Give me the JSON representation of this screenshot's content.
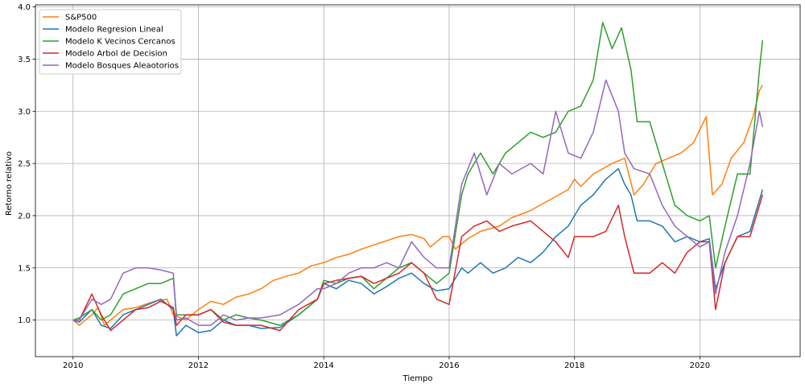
{
  "chart_data": {
    "type": "line",
    "xlabel": "Tiempo",
    "ylabel": "Retorno relativo",
    "xlim": [
      2009.4,
      2021.6
    ],
    "ylim": [
      0.65,
      4.02
    ],
    "x_ticks": [
      2010,
      2012,
      2014,
      2016,
      2018,
      2020
    ],
    "x_tick_labels": [
      "2010",
      "2012",
      "2014",
      "2016",
      "2018",
      "2020"
    ],
    "y_ticks": [
      1.0,
      1.5,
      2.0,
      2.5,
      3.0,
      3.5,
      4.0
    ],
    "y_tick_labels": [
      "1.0",
      "1.5",
      "2.0",
      "2.5",
      "3.0",
      "3.5",
      "4.0"
    ],
    "grid": true,
    "legend_position": "upper-left",
    "series": [
      {
        "name": "S&P500",
        "color": "#ff7f0e",
        "points": [
          [
            2010.0,
            1.0
          ],
          [
            2010.1,
            0.95
          ],
          [
            2010.3,
            1.05
          ],
          [
            2010.4,
            1.12
          ],
          [
            2010.5,
            0.95
          ],
          [
            2010.6,
            1.0
          ],
          [
            2010.8,
            1.1
          ],
          [
            2011.0,
            1.12
          ],
          [
            2011.3,
            1.18
          ],
          [
            2011.5,
            1.2
          ],
          [
            2011.6,
            1.05
          ],
          [
            2011.8,
            1.0
          ],
          [
            2012.0,
            1.1
          ],
          [
            2012.2,
            1.18
          ],
          [
            2012.4,
            1.15
          ],
          [
            2012.6,
            1.22
          ],
          [
            2012.8,
            1.25
          ],
          [
            2013.0,
            1.3
          ],
          [
            2013.2,
            1.38
          ],
          [
            2013.4,
            1.42
          ],
          [
            2013.6,
            1.45
          ],
          [
            2013.8,
            1.52
          ],
          [
            2014.0,
            1.55
          ],
          [
            2014.2,
            1.6
          ],
          [
            2014.4,
            1.63
          ],
          [
            2014.6,
            1.68
          ],
          [
            2014.8,
            1.72
          ],
          [
            2015.0,
            1.76
          ],
          [
            2015.2,
            1.8
          ],
          [
            2015.4,
            1.82
          ],
          [
            2015.6,
            1.78
          ],
          [
            2015.7,
            1.7
          ],
          [
            2015.9,
            1.8
          ],
          [
            2016.0,
            1.8
          ],
          [
            2016.1,
            1.68
          ],
          [
            2016.3,
            1.78
          ],
          [
            2016.5,
            1.85
          ],
          [
            2016.8,
            1.9
          ],
          [
            2017.0,
            1.98
          ],
          [
            2017.3,
            2.05
          ],
          [
            2017.6,
            2.15
          ],
          [
            2017.9,
            2.25
          ],
          [
            2018.0,
            2.35
          ],
          [
            2018.1,
            2.28
          ],
          [
            2018.3,
            2.4
          ],
          [
            2018.6,
            2.5
          ],
          [
            2018.8,
            2.55
          ],
          [
            2018.95,
            2.2
          ],
          [
            2019.1,
            2.3
          ],
          [
            2019.3,
            2.5
          ],
          [
            2019.5,
            2.55
          ],
          [
            2019.7,
            2.6
          ],
          [
            2019.9,
            2.7
          ],
          [
            2020.1,
            2.95
          ],
          [
            2020.2,
            2.2
          ],
          [
            2020.35,
            2.3
          ],
          [
            2020.5,
            2.55
          ],
          [
            2020.7,
            2.7
          ],
          [
            2020.85,
            2.95
          ],
          [
            2020.95,
            3.2
          ],
          [
            2021.0,
            3.25
          ]
        ]
      },
      {
        "name": "Modelo Regresion Lineal",
        "color": "#1f77b4",
        "points": [
          [
            2010.0,
            1.0
          ],
          [
            2010.1,
            0.98
          ],
          [
            2010.3,
            1.1
          ],
          [
            2010.45,
            0.95
          ],
          [
            2010.6,
            0.92
          ],
          [
            2010.8,
            1.05
          ],
          [
            2011.0,
            1.1
          ],
          [
            2011.2,
            1.15
          ],
          [
            2011.4,
            1.2
          ],
          [
            2011.6,
            1.1
          ],
          [
            2011.65,
            0.85
          ],
          [
            2011.8,
            0.95
          ],
          [
            2012.0,
            0.88
          ],
          [
            2012.2,
            0.9
          ],
          [
            2012.4,
            1.0
          ],
          [
            2012.6,
            0.95
          ],
          [
            2012.8,
            0.95
          ],
          [
            2013.0,
            0.92
          ],
          [
            2013.3,
            0.93
          ],
          [
            2013.6,
            1.05
          ],
          [
            2013.9,
            1.2
          ],
          [
            2014.0,
            1.35
          ],
          [
            2014.2,
            1.3
          ],
          [
            2014.4,
            1.38
          ],
          [
            2014.6,
            1.35
          ],
          [
            2014.8,
            1.25
          ],
          [
            2015.0,
            1.32
          ],
          [
            2015.2,
            1.4
          ],
          [
            2015.4,
            1.45
          ],
          [
            2015.6,
            1.35
          ],
          [
            2015.8,
            1.28
          ],
          [
            2016.0,
            1.3
          ],
          [
            2016.2,
            1.5
          ],
          [
            2016.3,
            1.45
          ],
          [
            2016.5,
            1.55
          ],
          [
            2016.7,
            1.45
          ],
          [
            2016.9,
            1.5
          ],
          [
            2017.1,
            1.6
          ],
          [
            2017.3,
            1.55
          ],
          [
            2017.5,
            1.65
          ],
          [
            2017.7,
            1.8
          ],
          [
            2017.9,
            1.9
          ],
          [
            2018.1,
            2.1
          ],
          [
            2018.3,
            2.2
          ],
          [
            2018.5,
            2.35
          ],
          [
            2018.7,
            2.45
          ],
          [
            2018.8,
            2.3
          ],
          [
            2018.9,
            2.2
          ],
          [
            2019.0,
            1.95
          ],
          [
            2019.2,
            1.95
          ],
          [
            2019.4,
            1.9
          ],
          [
            2019.6,
            1.75
          ],
          [
            2019.8,
            1.8
          ],
          [
            2020.0,
            1.75
          ],
          [
            2020.15,
            1.78
          ],
          [
            2020.25,
            1.3
          ],
          [
            2020.4,
            1.55
          ],
          [
            2020.6,
            1.8
          ],
          [
            2020.8,
            1.85
          ],
          [
            2021.0,
            2.25
          ]
        ]
      },
      {
        "name": "Modelo K Vecinos Cercanos",
        "color": "#2ca02c",
        "points": [
          [
            2010.0,
            1.0
          ],
          [
            2010.1,
            1.02
          ],
          [
            2010.3,
            1.1
          ],
          [
            2010.45,
            1.0
          ],
          [
            2010.6,
            1.05
          ],
          [
            2010.8,
            1.25
          ],
          [
            2011.0,
            1.3
          ],
          [
            2011.2,
            1.35
          ],
          [
            2011.4,
            1.35
          ],
          [
            2011.6,
            1.4
          ],
          [
            2011.65,
            1.05
          ],
          [
            2011.8,
            1.05
          ],
          [
            2012.0,
            1.05
          ],
          [
            2012.2,
            1.1
          ],
          [
            2012.4,
            1.0
          ],
          [
            2012.6,
            1.05
          ],
          [
            2012.8,
            1.02
          ],
          [
            2013.0,
            1.0
          ],
          [
            2013.3,
            0.95
          ],
          [
            2013.6,
            1.05
          ],
          [
            2013.9,
            1.2
          ],
          [
            2014.0,
            1.38
          ],
          [
            2014.2,
            1.35
          ],
          [
            2014.4,
            1.4
          ],
          [
            2014.6,
            1.42
          ],
          [
            2014.8,
            1.3
          ],
          [
            2015.0,
            1.4
          ],
          [
            2015.2,
            1.5
          ],
          [
            2015.4,
            1.55
          ],
          [
            2015.6,
            1.45
          ],
          [
            2015.8,
            1.35
          ],
          [
            2016.0,
            1.45
          ],
          [
            2016.2,
            2.2
          ],
          [
            2016.3,
            2.4
          ],
          [
            2016.5,
            2.6
          ],
          [
            2016.7,
            2.4
          ],
          [
            2016.9,
            2.6
          ],
          [
            2017.1,
            2.7
          ],
          [
            2017.3,
            2.8
          ],
          [
            2017.5,
            2.75
          ],
          [
            2017.7,
            2.8
          ],
          [
            2017.9,
            3.0
          ],
          [
            2018.1,
            3.05
          ],
          [
            2018.3,
            3.3
          ],
          [
            2018.45,
            3.85
          ],
          [
            2018.6,
            3.6
          ],
          [
            2018.75,
            3.8
          ],
          [
            2018.9,
            3.4
          ],
          [
            2019.0,
            2.9
          ],
          [
            2019.2,
            2.9
          ],
          [
            2019.4,
            2.5
          ],
          [
            2019.6,
            2.1
          ],
          [
            2019.8,
            2.0
          ],
          [
            2020.0,
            1.95
          ],
          [
            2020.15,
            2.0
          ],
          [
            2020.25,
            1.5
          ],
          [
            2020.4,
            1.9
          ],
          [
            2020.6,
            2.4
          ],
          [
            2020.8,
            2.4
          ],
          [
            2020.95,
            3.4
          ],
          [
            2021.0,
            3.68
          ]
        ]
      },
      {
        "name": "Modelo Arbol de Decision",
        "color": "#d62728",
        "points": [
          [
            2010.0,
            1.0
          ],
          [
            2010.1,
            1.0
          ],
          [
            2010.3,
            1.25
          ],
          [
            2010.45,
            1.05
          ],
          [
            2010.6,
            0.9
          ],
          [
            2010.8,
            1.0
          ],
          [
            2011.0,
            1.1
          ],
          [
            2011.2,
            1.12
          ],
          [
            2011.4,
            1.18
          ],
          [
            2011.6,
            1.12
          ],
          [
            2011.65,
            0.95
          ],
          [
            2011.8,
            1.05
          ],
          [
            2012.0,
            1.05
          ],
          [
            2012.2,
            1.1
          ],
          [
            2012.4,
            0.98
          ],
          [
            2012.6,
            0.95
          ],
          [
            2012.8,
            0.95
          ],
          [
            2013.0,
            0.95
          ],
          [
            2013.3,
            0.9
          ],
          [
            2013.6,
            1.1
          ],
          [
            2013.9,
            1.2
          ],
          [
            2014.0,
            1.35
          ],
          [
            2014.2,
            1.38
          ],
          [
            2014.4,
            1.4
          ],
          [
            2014.6,
            1.42
          ],
          [
            2014.8,
            1.35
          ],
          [
            2015.0,
            1.4
          ],
          [
            2015.2,
            1.45
          ],
          [
            2015.4,
            1.55
          ],
          [
            2015.6,
            1.45
          ],
          [
            2015.8,
            1.2
          ],
          [
            2016.0,
            1.15
          ],
          [
            2016.2,
            1.8
          ],
          [
            2016.4,
            1.9
          ],
          [
            2016.6,
            1.95
          ],
          [
            2016.8,
            1.85
          ],
          [
            2017.0,
            1.9
          ],
          [
            2017.3,
            1.95
          ],
          [
            2017.5,
            1.85
          ],
          [
            2017.7,
            1.75
          ],
          [
            2017.9,
            1.6
          ],
          [
            2018.0,
            1.8
          ],
          [
            2018.3,
            1.8
          ],
          [
            2018.5,
            1.85
          ],
          [
            2018.7,
            2.1
          ],
          [
            2018.8,
            1.8
          ],
          [
            2018.95,
            1.45
          ],
          [
            2019.2,
            1.45
          ],
          [
            2019.4,
            1.55
          ],
          [
            2019.6,
            1.45
          ],
          [
            2019.8,
            1.65
          ],
          [
            2020.0,
            1.75
          ],
          [
            2020.15,
            1.75
          ],
          [
            2020.25,
            1.1
          ],
          [
            2020.4,
            1.55
          ],
          [
            2020.6,
            1.8
          ],
          [
            2020.8,
            1.8
          ],
          [
            2021.0,
            2.2
          ]
        ]
      },
      {
        "name": "Modelo Bosques Aleaotorios",
        "color": "#9467bd",
        "points": [
          [
            2010.0,
            1.0
          ],
          [
            2010.1,
            1.0
          ],
          [
            2010.3,
            1.2
          ],
          [
            2010.45,
            1.15
          ],
          [
            2010.6,
            1.2
          ],
          [
            2010.8,
            1.45
          ],
          [
            2011.0,
            1.5
          ],
          [
            2011.2,
            1.5
          ],
          [
            2011.4,
            1.48
          ],
          [
            2011.6,
            1.45
          ],
          [
            2011.65,
            1.0
          ],
          [
            2011.8,
            1.02
          ],
          [
            2012.0,
            0.95
          ],
          [
            2012.2,
            0.95
          ],
          [
            2012.4,
            1.05
          ],
          [
            2012.6,
            1.0
          ],
          [
            2012.8,
            1.02
          ],
          [
            2013.0,
            1.02
          ],
          [
            2013.3,
            1.05
          ],
          [
            2013.6,
            1.15
          ],
          [
            2013.9,
            1.3
          ],
          [
            2014.0,
            1.3
          ],
          [
            2014.2,
            1.35
          ],
          [
            2014.4,
            1.45
          ],
          [
            2014.6,
            1.5
          ],
          [
            2014.8,
            1.5
          ],
          [
            2015.0,
            1.55
          ],
          [
            2015.2,
            1.5
          ],
          [
            2015.4,
            1.75
          ],
          [
            2015.6,
            1.6
          ],
          [
            2015.8,
            1.5
          ],
          [
            2016.0,
            1.5
          ],
          [
            2016.2,
            2.3
          ],
          [
            2016.4,
            2.6
          ],
          [
            2016.6,
            2.2
          ],
          [
            2016.8,
            2.5
          ],
          [
            2017.0,
            2.4
          ],
          [
            2017.3,
            2.5
          ],
          [
            2017.5,
            2.4
          ],
          [
            2017.7,
            3.0
          ],
          [
            2017.9,
            2.6
          ],
          [
            2018.1,
            2.55
          ],
          [
            2018.3,
            2.8
          ],
          [
            2018.5,
            3.3
          ],
          [
            2018.7,
            3.0
          ],
          [
            2018.8,
            2.6
          ],
          [
            2018.95,
            2.45
          ],
          [
            2019.2,
            2.4
          ],
          [
            2019.4,
            2.1
          ],
          [
            2019.6,
            1.9
          ],
          [
            2019.8,
            1.8
          ],
          [
            2020.0,
            1.7
          ],
          [
            2020.15,
            1.75
          ],
          [
            2020.25,
            1.25
          ],
          [
            2020.4,
            1.65
          ],
          [
            2020.6,
            2.0
          ],
          [
            2020.8,
            2.5
          ],
          [
            2020.95,
            3.0
          ],
          [
            2021.0,
            2.85
          ]
        ]
      }
    ]
  }
}
